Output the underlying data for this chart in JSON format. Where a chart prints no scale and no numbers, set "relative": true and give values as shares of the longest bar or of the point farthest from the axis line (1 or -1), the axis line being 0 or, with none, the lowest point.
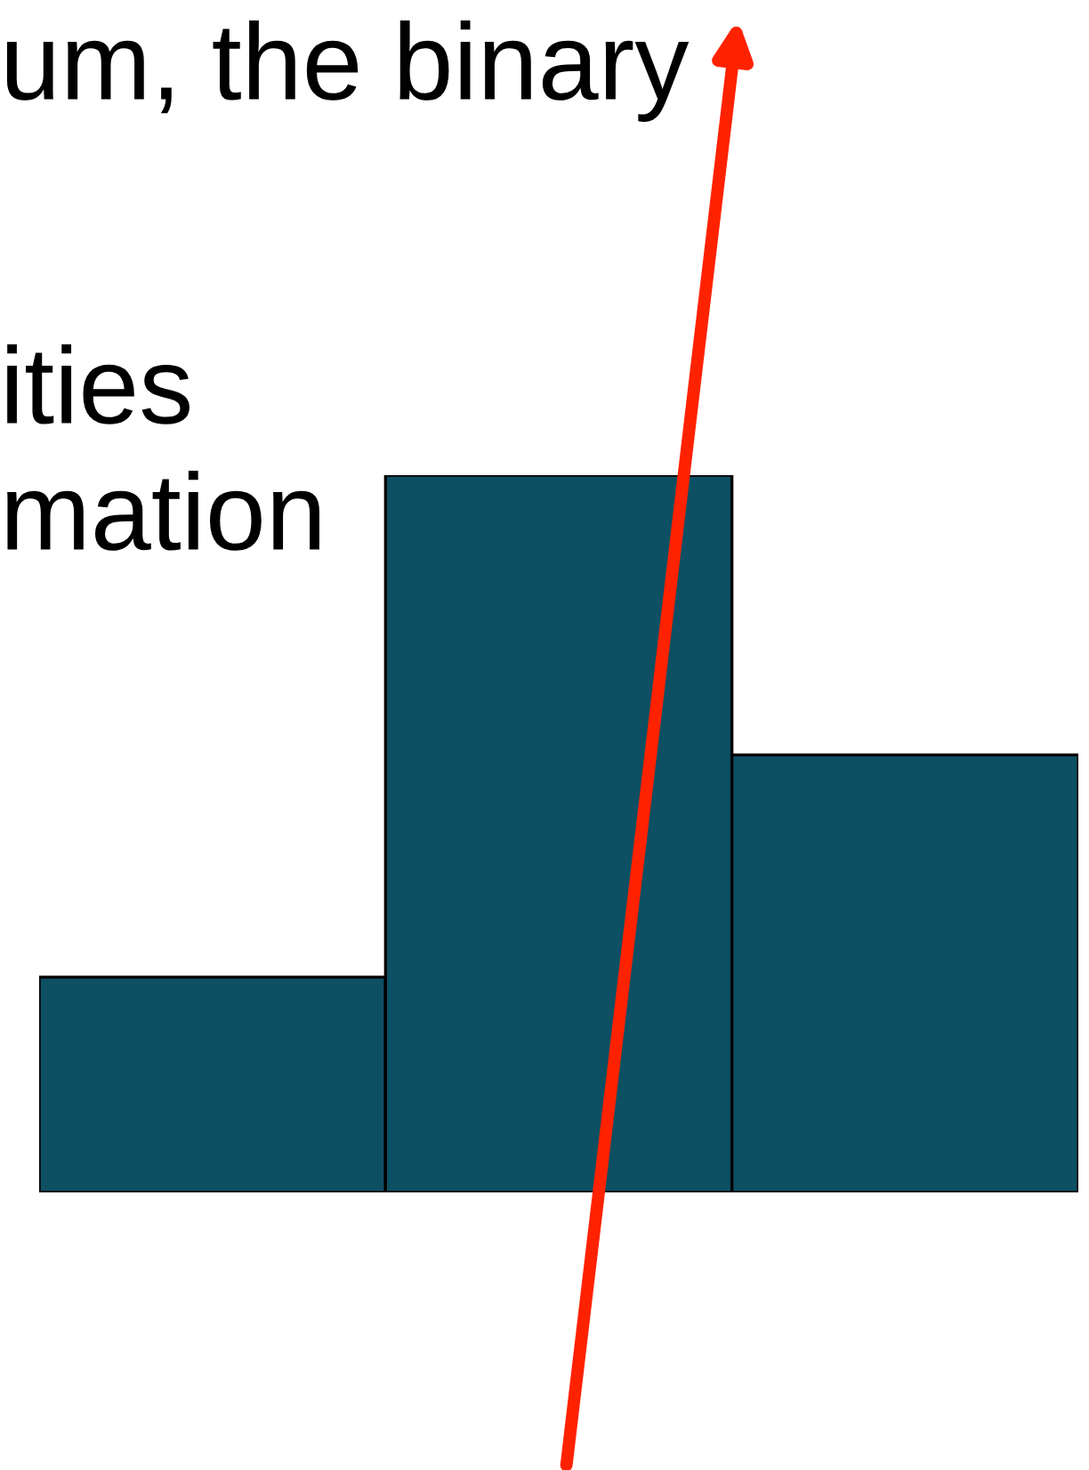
{
  "chart_data": {
    "type": "bar",
    "relative": true,
    "categories": [
      null,
      null,
      null
    ],
    "values": [
      0.3,
      1,
      0.61
    ],
    "color": "#0d4f63",
    "annotations": [
      "um, the binary",
      "ities",
      "mation"
    ]
  }
}
